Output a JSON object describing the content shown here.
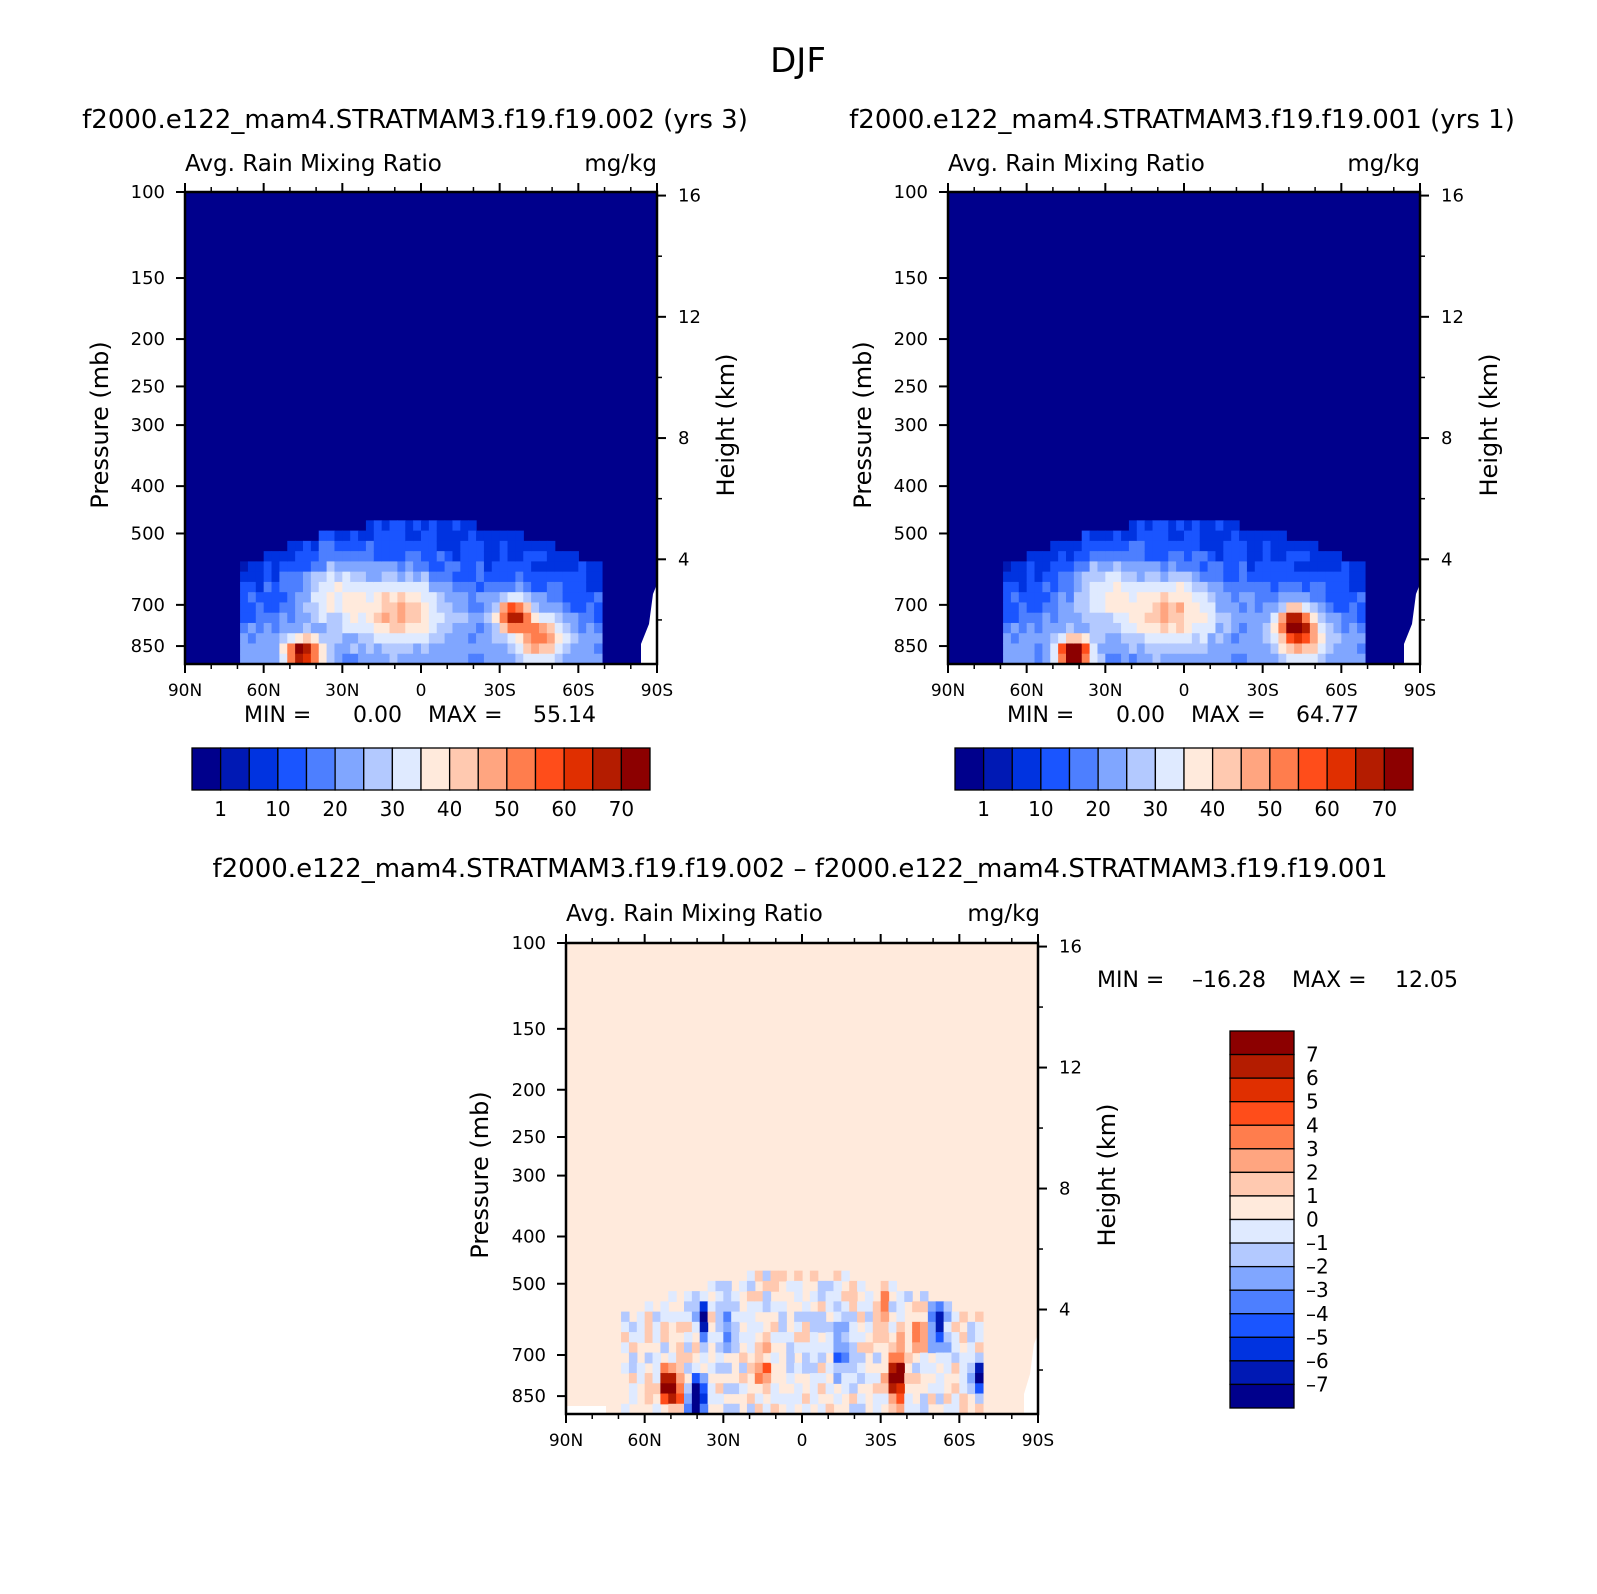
{
  "title": "DJF",
  "colors": {
    "seq": [
      "#00008c",
      "#0019b4",
      "#0033e0",
      "#1a55ff",
      "#4d7fff",
      "#80a6ff",
      "#b3c9ff",
      "#dfeaff",
      "#ffeadc",
      "#ffc9b0",
      "#ffa580",
      "#ff7d4d",
      "#ff4d1a",
      "#e02f00",
      "#b41c00",
      "#8c0000"
    ],
    "diff": [
      "#00008c",
      "#0019b4",
      "#0033e0",
      "#1a55ff",
      "#4d7fff",
      "#80a6ff",
      "#b3c9ff",
      "#dfeaff",
      "#ffeadc",
      "#ffc9b0",
      "#ffa580",
      "#ff7d4d",
      "#ff4d1a",
      "#e02f00",
      "#b41c00",
      "#8c0000"
    ]
  },
  "chart_data": [
    {
      "type": "heatmap",
      "id": "left",
      "case_title": "f2000.e122_mam4.STRATMAM3.f19.f19.002 (yrs 3)",
      "field": "Avg. Rain Mixing Ratio",
      "units": "mg/kg",
      "ylabel": "Pressure (mb)",
      "ylabel_right": "Height (km)",
      "x_ticks": [
        "90N",
        "60N",
        "30N",
        "0",
        "30S",
        "60S",
        "90S"
      ],
      "pressure_ticks": [
        "100",
        "150",
        "200",
        "250",
        "300",
        "400",
        "500",
        "700",
        "850"
      ],
      "height_ticks": [
        "16",
        "12",
        "8",
        "4"
      ],
      "min_label": "MIN =",
      "min_value": "0.00",
      "max_label": "MAX =",
      "max_value": "55.14",
      "colorbar_labels": [
        "1",
        "10",
        "20",
        "30",
        "40",
        "50",
        "60",
        "70"
      ],
      "blobs": [
        {
          "lat": 45,
          "p": 880,
          "v": 55,
          "wlat": 7,
          "wp": 60
        },
        {
          "lat": -35,
          "p": 730,
          "v": 48,
          "wlat": 6,
          "wp": 55
        },
        {
          "lat": -45,
          "p": 820,
          "v": 32,
          "wlat": 9,
          "wp": 90
        },
        {
          "lat": 8,
          "p": 720,
          "v": 26,
          "wlat": 16,
          "wp": 120
        },
        {
          "lat": 33,
          "p": 650,
          "v": 18,
          "wlat": 12,
          "wp": 110
        }
      ]
    },
    {
      "type": "heatmap",
      "id": "right",
      "case_title": "f2000.e122_mam4.STRATMAM3.f19.f19.001 (yrs 1)",
      "field": "Avg. Rain Mixing Ratio",
      "units": "mg/kg",
      "ylabel": "Pressure (mb)",
      "ylabel_right": "Height (km)",
      "x_ticks": [
        "90N",
        "60N",
        "30N",
        "0",
        "30S",
        "60S",
        "90S"
      ],
      "pressure_ticks": [
        "100",
        "150",
        "200",
        "250",
        "300",
        "400",
        "500",
        "700",
        "850"
      ],
      "height_ticks": [
        "16",
        "12",
        "8",
        "4"
      ],
      "min_label": "MIN =",
      "min_value": "0.00",
      "max_label": "MAX =",
      "max_value": "64.77",
      "colorbar_labels": [
        "1",
        "10",
        "20",
        "30",
        "40",
        "50",
        "60",
        "70"
      ],
      "blobs": [
        {
          "lat": 42,
          "p": 880,
          "v": 64,
          "wlat": 6,
          "wp": 60
        },
        {
          "lat": -42,
          "p": 760,
          "v": 40,
          "wlat": 6,
          "wp": 60
        },
        {
          "lat": -45,
          "p": 820,
          "v": 30,
          "wlat": 9,
          "wp": 90
        },
        {
          "lat": 5,
          "p": 720,
          "v": 26,
          "wlat": 16,
          "wp": 120
        },
        {
          "lat": 30,
          "p": 650,
          "v": 18,
          "wlat": 12,
          "wp": 110
        }
      ]
    },
    {
      "type": "heatmap",
      "id": "diff",
      "case_title": "f2000.e122_mam4.STRATMAM3.f19.f19.002 – f2000.e122_mam4.STRATMAM3.f19.f19.001",
      "field": "Avg. Rain Mixing Ratio",
      "units": "mg/kg",
      "ylabel": "Pressure (mb)",
      "ylabel_right": "Height (km)",
      "x_ticks": [
        "90N",
        "60N",
        "30N",
        "0",
        "30S",
        "60S",
        "90S"
      ],
      "pressure_ticks": [
        "100",
        "150",
        "200",
        "250",
        "300",
        "400",
        "500",
        "700",
        "850"
      ],
      "height_ticks": [
        "16",
        "12",
        "8",
        "4"
      ],
      "min_label": "MIN =",
      "min_value": "–16.28",
      "max_label": "MAX =",
      "max_value": "12.05",
      "colorbar_labels": [
        "7",
        "6",
        "5",
        "4",
        "3",
        "2",
        "1",
        "0",
        "–1",
        "–2",
        "–3",
        "–4",
        "–5",
        "–6",
        "–7"
      ],
      "blobs": [
        {
          "lat": 50,
          "p": 820,
          "v": 10,
          "wlat": 4,
          "wp": 70
        },
        {
          "lat": 40,
          "p": 860,
          "v": -12,
          "wlat": 3,
          "wp": 70
        },
        {
          "lat": 38,
          "p": 600,
          "v": -8,
          "wlat": 2,
          "wp": 60
        },
        {
          "lat": -36,
          "p": 780,
          "v": 10,
          "wlat": 3,
          "wp": 100
        },
        {
          "lat": -30,
          "p": 570,
          "v": 5,
          "wlat": 2,
          "wp": 60
        },
        {
          "lat": -52,
          "p": 620,
          "v": -7,
          "wlat": 3,
          "wp": 70
        },
        {
          "lat": -67,
          "p": 780,
          "v": -8,
          "wlat": 3,
          "wp": 60
        },
        {
          "lat": -45,
          "p": 630,
          "v": 6,
          "wlat": 2,
          "wp": 50
        },
        {
          "lat": -15,
          "p": 700,
          "v": -4,
          "wlat": 3,
          "wp": 90
        },
        {
          "lat": 15,
          "p": 740,
          "v": 3,
          "wlat": 4,
          "wp": 90
        },
        {
          "lat": 28,
          "p": 620,
          "v": -3,
          "wlat": 3,
          "wp": 80
        }
      ]
    }
  ]
}
